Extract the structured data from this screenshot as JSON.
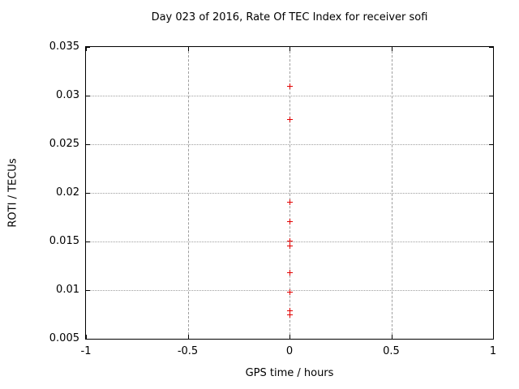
{
  "window": {
    "title": "Day 023 of 2016, Rate Of TEC Index for receiver sofi"
  },
  "colors": {
    "marker": "#e00000",
    "grid": "#9e9e9e",
    "axis": "#000000",
    "background": "#ffffff"
  },
  "chart_data": {
    "type": "scatter",
    "title": "Day 023 of 2016, Rate Of TEC Index for receiver sofi",
    "xlabel": "GPS time / hours",
    "ylabel": "ROTI / TECUs",
    "xlim": [
      -1,
      1
    ],
    "ylim": [
      0.005,
      0.035
    ],
    "xticks": [
      -1,
      -0.5,
      0,
      0.5,
      1
    ],
    "xtick_labels": [
      "-1",
      "-0.5",
      "0",
      "0.5",
      "1"
    ],
    "yticks": [
      0.005,
      0.01,
      0.015,
      0.02,
      0.025,
      0.03,
      0.035
    ],
    "ytick_labels": [
      "0.005",
      "0.01",
      "0.015",
      "0.02",
      "0.025",
      "0.03",
      "0.035"
    ],
    "grid": true,
    "legend": "none",
    "marker_style": "plus",
    "series": [
      {
        "name": "ROTI",
        "color": "#e00000",
        "x": [
          0,
          0,
          0,
          0,
          0,
          0,
          0,
          0,
          0,
          0
        ],
        "y": [
          0.031,
          0.0276,
          0.0191,
          0.0171,
          0.0151,
          0.0146,
          0.0118,
          0.0098,
          0.0079,
          0.0075
        ]
      }
    ]
  }
}
